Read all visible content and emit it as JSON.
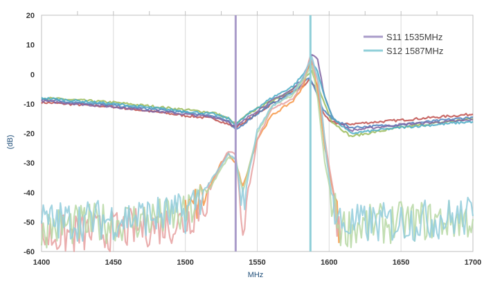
{
  "chart_data": {
    "type": "line",
    "title": "",
    "xlabel": "MHz",
    "ylabel": "(dB)",
    "xlim": [
      1400,
      1700
    ],
    "ylim": [
      -60,
      20
    ],
    "x_ticks": [
      "1400",
      "1450",
      "1500",
      "1550",
      "1600",
      "1650",
      "1700"
    ],
    "y_ticks": [
      "20",
      "10",
      "0",
      "-10",
      "-20",
      "-30",
      "-40",
      "-50",
      "-60"
    ],
    "grid": "vertical",
    "legend_position": "top-right",
    "markers": [
      {
        "name": "S11 1535MHz",
        "x": 1535,
        "color": "#a99bc9"
      },
      {
        "name": "S12 1587MHz",
        "x": 1587,
        "color": "#8fcfd8"
      }
    ],
    "series": [
      {
        "color": "#c0504d",
        "points": [
          [
            1400,
            -9.5
          ],
          [
            1450,
            -11
          ],
          [
            1500,
            -14
          ],
          [
            1520,
            -15
          ],
          [
            1530,
            -17
          ],
          [
            1535,
            -18
          ],
          [
            1545,
            -15
          ],
          [
            1560,
            -10
          ],
          [
            1575,
            -6
          ],
          [
            1582,
            -4
          ],
          [
            1586,
            -2
          ],
          [
            1590,
            -4
          ],
          [
            1595,
            -12
          ],
          [
            1600,
            -16
          ],
          [
            1610,
            -17
          ],
          [
            1650,
            -15.5
          ],
          [
            1700,
            -13.5
          ]
        ]
      },
      {
        "color": "#9bbb59",
        "points": [
          [
            1400,
            -8
          ],
          [
            1450,
            -9.5
          ],
          [
            1500,
            -12
          ],
          [
            1520,
            -13
          ],
          [
            1530,
            -15
          ],
          [
            1535,
            -17
          ],
          [
            1545,
            -13
          ],
          [
            1560,
            -9
          ],
          [
            1575,
            -5
          ],
          [
            1582,
            -2
          ],
          [
            1588,
            1
          ],
          [
            1592,
            -4
          ],
          [
            1597,
            -10
          ],
          [
            1602,
            -16
          ],
          [
            1615,
            -21
          ],
          [
            1650,
            -18
          ],
          [
            1700,
            -15
          ]
        ]
      },
      {
        "color": "#4f81bd",
        "points": [
          [
            1400,
            -8.5
          ],
          [
            1450,
            -10.5
          ],
          [
            1500,
            -13
          ],
          [
            1520,
            -14
          ],
          [
            1530,
            -16
          ],
          [
            1535,
            -19
          ],
          [
            1545,
            -15
          ],
          [
            1560,
            -10
          ],
          [
            1575,
            -6
          ],
          [
            1582,
            -3
          ],
          [
            1586,
            -1
          ],
          [
            1590,
            -5
          ],
          [
            1596,
            -12
          ],
          [
            1602,
            -15
          ],
          [
            1615,
            -18
          ],
          [
            1650,
            -17
          ],
          [
            1700,
            -14.5
          ]
        ]
      },
      {
        "color": "#8064a2",
        "points": [
          [
            1400,
            -9
          ],
          [
            1450,
            -11
          ],
          [
            1500,
            -13.5
          ],
          [
            1520,
            -14.5
          ],
          [
            1530,
            -16
          ],
          [
            1535,
            -18
          ],
          [
            1545,
            -14
          ],
          [
            1560,
            -9
          ],
          [
            1575,
            -5
          ],
          [
            1582,
            -1
          ],
          [
            1588,
            7
          ],
          [
            1592,
            5
          ],
          [
            1597,
            -8
          ],
          [
            1603,
            -15
          ],
          [
            1615,
            -19
          ],
          [
            1650,
            -17
          ],
          [
            1700,
            -15.5
          ]
        ]
      },
      {
        "color": "#4bacc6",
        "points": [
          [
            1400,
            -8
          ],
          [
            1450,
            -10
          ],
          [
            1500,
            -12.5
          ],
          [
            1520,
            -13.5
          ],
          [
            1530,
            -15
          ],
          [
            1535,
            -17
          ],
          [
            1545,
            -13
          ],
          [
            1560,
            -8
          ],
          [
            1575,
            -4
          ],
          [
            1582,
            0
          ],
          [
            1588,
            4
          ],
          [
            1592,
            1
          ],
          [
            1597,
            -8
          ],
          [
            1603,
            -15
          ],
          [
            1615,
            -20
          ],
          [
            1650,
            -18
          ],
          [
            1700,
            -16
          ]
        ]
      },
      {
        "color": "#f79646",
        "points": [
          [
            1500,
            -48
          ],
          [
            1515,
            -40
          ],
          [
            1525,
            -30
          ],
          [
            1530,
            -27
          ],
          [
            1535,
            -30
          ],
          [
            1540,
            -38
          ],
          [
            1550,
            -22
          ],
          [
            1560,
            -14
          ],
          [
            1575,
            -9
          ],
          [
            1582,
            -4
          ],
          [
            1587,
            5
          ],
          [
            1592,
            -5
          ],
          [
            1597,
            -25
          ],
          [
            1603,
            -40
          ],
          [
            1608,
            -55
          ]
        ]
      },
      {
        "color": "#e6a0a0",
        "points": [
          [
            1400,
            -55
          ],
          [
            1450,
            -53
          ],
          [
            1500,
            -50
          ],
          [
            1515,
            -42
          ],
          [
            1525,
            -30
          ],
          [
            1530,
            -26
          ],
          [
            1535,
            -27
          ],
          [
            1540,
            -52
          ],
          [
            1550,
            -22
          ],
          [
            1560,
            -12
          ],
          [
            1575,
            -8
          ],
          [
            1582,
            -3
          ],
          [
            1587,
            6
          ],
          [
            1592,
            -2
          ],
          [
            1597,
            -22
          ],
          [
            1603,
            -40
          ],
          [
            1608,
            -56
          ]
        ]
      },
      {
        "color": "#b7d8a5",
        "points": [
          [
            1400,
            -52
          ],
          [
            1450,
            -50
          ],
          [
            1500,
            -48
          ],
          [
            1515,
            -40
          ],
          [
            1525,
            -32
          ],
          [
            1530,
            -28
          ],
          [
            1535,
            -29
          ],
          [
            1540,
            -40
          ],
          [
            1550,
            -20
          ],
          [
            1560,
            -11
          ],
          [
            1575,
            -7
          ],
          [
            1582,
            -2
          ],
          [
            1588,
            3
          ],
          [
            1592,
            -8
          ],
          [
            1597,
            -30
          ],
          [
            1603,
            -45
          ],
          [
            1608,
            -52
          ],
          [
            1650,
            -50
          ],
          [
            1700,
            -49
          ]
        ]
      },
      {
        "color": "#92cddc",
        "points": [
          [
            1400,
            -50
          ],
          [
            1450,
            -49
          ],
          [
            1500,
            -47
          ],
          [
            1515,
            -38
          ],
          [
            1525,
            -31
          ],
          [
            1530,
            -27
          ],
          [
            1535,
            -29
          ],
          [
            1540,
            -44
          ],
          [
            1550,
            -19
          ],
          [
            1560,
            -11
          ],
          [
            1575,
            -6
          ],
          [
            1582,
            -1
          ],
          [
            1588,
            6
          ],
          [
            1593,
            -3
          ],
          [
            1598,
            -28
          ],
          [
            1604,
            -48
          ],
          [
            1610,
            -51
          ],
          [
            1650,
            -50
          ],
          [
            1700,
            -48
          ]
        ]
      }
    ]
  }
}
